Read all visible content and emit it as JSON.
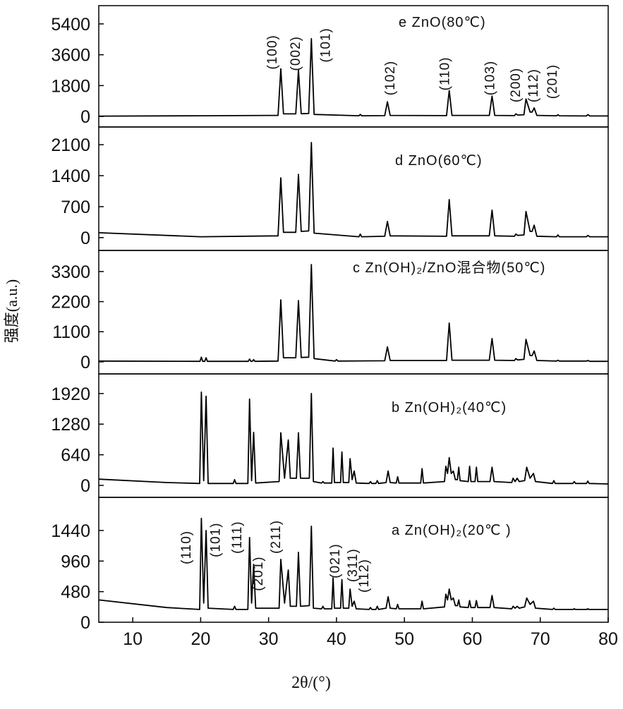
{
  "chart_data": [
    {
      "type": "line",
      "title": "e ZnO(80℃)",
      "xlim": [
        5,
        80
      ],
      "ylim": [
        -614,
        6464
      ],
      "yticks": [
        0,
        1800,
        3600,
        5400
      ],
      "x": [
        5,
        20,
        31.4,
        31.8,
        32.2,
        34.0,
        34.4,
        34.8,
        35.9,
        36.3,
        36.7,
        43.3,
        43.5,
        43.7,
        47.1,
        47.5,
        47.9,
        56.2,
        56.6,
        57.0,
        62.5,
        62.9,
        63.3,
        66.2,
        66.4,
        66.7,
        67.6,
        67.9,
        68.5,
        68.8,
        69.1,
        69.5,
        72.4,
        72.6,
        72.8,
        76.8,
        77.0,
        77.3,
        80
      ],
      "series": [
        {
          "color": "#000000",
          "values": [
            20,
            40,
            60,
            2780,
            150,
            150,
            2700,
            160,
            170,
            4540,
            120,
            40,
            120,
            40,
            50,
            860,
            60,
            50,
            1510,
            60,
            60,
            1190,
            60,
            50,
            150,
            80,
            100,
            1020,
            260,
            260,
            500,
            60,
            40,
            100,
            40,
            30,
            110,
            30,
            30
          ]
        }
      ],
      "annotations": [
        {
          "text": "(100)",
          "x": 31.2,
          "y": 2740
        },
        {
          "text": "(002)",
          "x": 34.6,
          "y": 2660
        },
        {
          "text": "(101)",
          "x": 39.0,
          "y": 3150
        },
        {
          "text": "(102)",
          "x": 48.5,
          "y": 1230
        },
        {
          "text": "(110)",
          "x": 56.6,
          "y": 1510
        },
        {
          "text": "(103)",
          "x": 63.2,
          "y": 1230
        },
        {
          "text": "(200)",
          "x": 67.0,
          "y": 820
        },
        {
          "text": "(112)",
          "x": 69.6,
          "y": 820
        },
        {
          "text": "(201)",
          "x": 72.4,
          "y": 1020
        }
      ]
    },
    {
      "type": "line",
      "title": "d ZnO(60℃)",
      "xlim": [
        5,
        80
      ],
      "ylim": [
        -290,
        2500
      ],
      "yticks": [
        0,
        700,
        1400,
        2100
      ],
      "x": [
        5,
        20,
        31.4,
        31.8,
        32.2,
        34.0,
        34.4,
        34.8,
        35.9,
        36.3,
        36.7,
        43.3,
        43.5,
        43.7,
        47.1,
        47.5,
        47.9,
        56.2,
        56.6,
        57.0,
        62.5,
        62.9,
        63.3,
        66.2,
        66.4,
        66.7,
        67.6,
        67.9,
        68.5,
        68.8,
        69.1,
        69.5,
        72.4,
        72.6,
        72.8,
        76.8,
        77.0,
        77.3,
        80
      ],
      "series": [
        {
          "color": "#000000",
          "values": [
            110,
            20,
            40,
            1350,
            120,
            120,
            1430,
            140,
            150,
            2150,
            100,
            20,
            80,
            20,
            30,
            366,
            40,
            30,
            860,
            40,
            40,
            620,
            40,
            30,
            80,
            50,
            60,
            590,
            140,
            140,
            280,
            30,
            20,
            60,
            20,
            20,
            50,
            20,
            20
          ]
        }
      ]
    },
    {
      "type": "line",
      "title": "c Zn(OH)₂/ZnO混合物(50℃)",
      "ylabel": "强度(a.u.)",
      "xlim": [
        5,
        80
      ],
      "ylim": [
        -440,
        4070
      ],
      "yticks": [
        0,
        1100,
        2200,
        3300
      ],
      "x": [
        5,
        19.9,
        20.1,
        20.3,
        20.6,
        20.8,
        21.0,
        27.0,
        27.2,
        27.4,
        27.6,
        27.8,
        28.0,
        31.4,
        31.8,
        32.2,
        34.0,
        34.4,
        34.8,
        35.9,
        36.3,
        36.7,
        39.8,
        40.0,
        40.2,
        47.1,
        47.5,
        47.9,
        56.2,
        56.6,
        57.0,
        62.5,
        62.9,
        63.3,
        66.2,
        66.4,
        66.7,
        67.6,
        67.9,
        68.5,
        68.8,
        69.1,
        69.5,
        72.4,
        72.6,
        72.8,
        76.8,
        77.0,
        77.3,
        80
      ],
      "series": [
        {
          "color": "#000000",
          "values": [
            30,
            20,
            170,
            20,
            20,
            150,
            20,
            20,
            100,
            20,
            20,
            80,
            20,
            30,
            2267,
            150,
            150,
            2240,
            160,
            170,
            3555,
            120,
            30,
            80,
            30,
            40,
            550,
            50,
            50,
            1417,
            60,
            60,
            850,
            60,
            50,
            120,
            70,
            90,
            824,
            230,
            230,
            400,
            50,
            30,
            60,
            30,
            30,
            50,
            20,
            20
          ]
        }
      ]
    },
    {
      "type": "line",
      "title": "b Zn(OH)₂(40℃)",
      "xlim": [
        5,
        80
      ],
      "ylim": [
        -250,
        2330
      ],
      "yticks": [
        0,
        640,
        1280,
        1920
      ],
      "x": [
        5,
        15,
        19.85,
        20.1,
        20.45,
        20.8,
        21.1,
        24.8,
        25,
        25.2,
        26.95,
        27.2,
        27.5,
        27.8,
        28.1,
        31.55,
        31.8,
        32.35,
        32.9,
        33.2,
        34.1,
        34.4,
        34.7,
        36.0,
        36.3,
        36.6,
        37.8,
        38.0,
        38.2,
        39.3,
        39.5,
        39.7,
        40.6,
        40.8,
        41.0,
        41.8,
        42.0,
        42.3,
        42.6,
        42.9,
        44.8,
        45,
        45.2,
        45.8,
        46,
        46.2,
        47.3,
        47.6,
        47.9,
        48.8,
        49,
        49.2,
        52.4,
        52.6,
        52.8,
        55.9,
        56.1,
        56.35,
        56.6,
        56.9,
        57.2,
        57.5,
        57.8,
        58,
        58.2,
        59.4,
        59.6,
        59.8,
        60.4,
        60.6,
        60.8,
        62.6,
        62.9,
        63.2,
        65.8,
        66,
        66.3,
        66.6,
        66.9,
        67.7,
        68,
        68.5,
        69,
        69.3,
        71.8,
        72,
        72.2,
        74.8,
        75,
        75.2,
        76.8,
        77,
        77.2,
        80
      ],
      "series": [
        {
          "color": "#000000",
          "values": [
            130,
            60,
            40,
            1950,
            100,
            1862,
            40,
            40,
            120,
            40,
            40,
            1803,
            100,
            1108,
            50,
            80,
            1100,
            150,
            950,
            150,
            150,
            1100,
            150,
            150,
            1920,
            80,
            50,
            80,
            50,
            50,
            780,
            60,
            60,
            700,
            60,
            60,
            560,
            120,
            300,
            50,
            40,
            80,
            40,
            40,
            100,
            40,
            60,
            300,
            60,
            50,
            180,
            50,
            50,
            350,
            50,
            80,
            400,
            250,
            580,
            250,
            300,
            120,
            120,
            380,
            100,
            80,
            400,
            80,
            80,
            380,
            80,
            80,
            380,
            80,
            60,
            150,
            80,
            150,
            80,
            100,
            380,
            150,
            250,
            80,
            40,
            100,
            40,
            40,
            80,
            40,
            40,
            90,
            40,
            30
          ]
        }
      ]
    },
    {
      "type": "line",
      "title": "a Zn(OH)₂(20℃ )",
      "xlabel": "2θ/(°)",
      "xlim": [
        5,
        80
      ],
      "xticks": [
        10,
        20,
        30,
        40,
        50,
        60,
        70,
        80
      ],
      "ylim": [
        0,
        1960
      ],
      "yticks": [
        0,
        480,
        960,
        1440
      ],
      "x": [
        5,
        15,
        19.85,
        20.1,
        20.45,
        20.8,
        21.1,
        24.8,
        25,
        25.2,
        26.95,
        27.2,
        27.5,
        27.8,
        28.1,
        31.55,
        31.8,
        32.35,
        32.9,
        33.2,
        34.1,
        34.4,
        34.7,
        36.0,
        36.3,
        36.6,
        37.8,
        38.0,
        38.2,
        39.3,
        39.5,
        39.7,
        40.6,
        40.8,
        41.0,
        41.8,
        42.0,
        42.3,
        42.6,
        42.9,
        44.8,
        45,
        45.2,
        45.8,
        46,
        46.2,
        47.3,
        47.6,
        47.9,
        48.8,
        49,
        49.2,
        52.4,
        52.6,
        52.8,
        55.9,
        56.1,
        56.35,
        56.6,
        56.9,
        57.2,
        57.5,
        57.8,
        58,
        58.2,
        59.4,
        59.6,
        59.8,
        60.4,
        60.6,
        60.8,
        62.6,
        62.9,
        63.2,
        65.8,
        66,
        66.3,
        66.6,
        66.9,
        67.7,
        68,
        68.5,
        69,
        69.3,
        71.8,
        72,
        72.2,
        74.8,
        75,
        75.2,
        76.8,
        77,
        77.2,
        80
      ],
      "series": [
        {
          "color": "#000000",
          "values": [
            350,
            230,
            200,
            1630,
            300,
            1440,
            220,
            200,
            250,
            200,
            200,
            1330,
            300,
            909,
            220,
            220,
            987,
            300,
            820,
            250,
            250,
            1097,
            250,
            260,
            1507,
            220,
            210,
            250,
            210,
            210,
            698,
            220,
            220,
            670,
            220,
            220,
            520,
            250,
            330,
            210,
            200,
            230,
            200,
            200,
            250,
            200,
            220,
            400,
            220,
            210,
            280,
            210,
            210,
            330,
            210,
            240,
            440,
            350,
            520,
            350,
            380,
            260,
            260,
            350,
            240,
            230,
            340,
            230,
            230,
            340,
            230,
            230,
            420,
            230,
            210,
            250,
            220,
            250,
            220,
            240,
            380,
            280,
            330,
            220,
            200,
            220,
            200,
            200,
            210,
            200,
            200,
            210,
            200,
            200
          ]
        }
      ],
      "annotations": [
        {
          "text": "(110)",
          "x": 18.5,
          "y": 910
        },
        {
          "text": "(101)",
          "x": 22.8,
          "y": 1020
        },
        {
          "text": "(111)",
          "x": 26.0,
          "y": 1075
        },
        {
          "text": "(201)",
          "x": 29.1,
          "y": 490
        },
        {
          "text": "(211)",
          "x": 31.7,
          "y": 1075
        },
        {
          "text": "(021)",
          "x": 40.4,
          "y": 690
        },
        {
          "text": "(311)",
          "x": 43.0,
          "y": 630
        },
        {
          "text": "(112)",
          "x": 44.7,
          "y": 465
        }
      ]
    }
  ]
}
